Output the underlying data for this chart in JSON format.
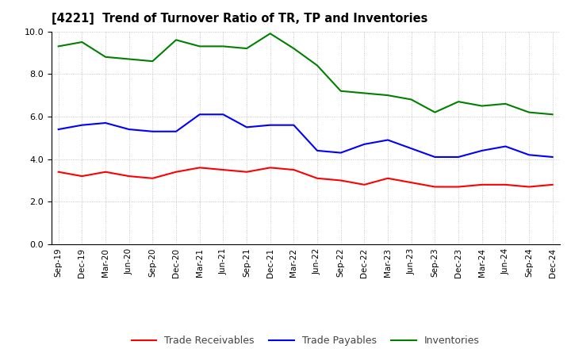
{
  "title": "[4221]  Trend of Turnover Ratio of TR, TP and Inventories",
  "x_labels": [
    "Sep-19",
    "Dec-19",
    "Mar-20",
    "Jun-20",
    "Sep-20",
    "Dec-20",
    "Mar-21",
    "Jun-21",
    "Sep-21",
    "Dec-21",
    "Mar-22",
    "Jun-22",
    "Sep-22",
    "Dec-22",
    "Mar-23",
    "Jun-23",
    "Sep-23",
    "Dec-23",
    "Mar-24",
    "Jun-24",
    "Sep-24",
    "Dec-24"
  ],
  "trade_receivables": [
    3.4,
    3.2,
    3.4,
    3.2,
    3.1,
    3.4,
    3.6,
    3.5,
    3.4,
    3.6,
    3.5,
    3.1,
    3.0,
    2.8,
    3.1,
    2.9,
    2.7,
    2.7,
    2.8,
    2.8,
    2.7,
    2.8
  ],
  "trade_payables": [
    5.4,
    5.6,
    5.7,
    5.4,
    5.3,
    5.3,
    6.1,
    6.1,
    5.5,
    5.6,
    5.6,
    4.4,
    4.3,
    4.7,
    4.9,
    4.5,
    4.1,
    4.1,
    4.4,
    4.6,
    4.2,
    4.1
  ],
  "inventories": [
    9.3,
    9.5,
    8.8,
    8.7,
    8.6,
    9.6,
    9.3,
    9.3,
    9.2,
    9.9,
    9.2,
    8.4,
    7.2,
    7.1,
    7.0,
    6.8,
    6.2,
    6.7,
    6.5,
    6.6,
    6.2,
    6.1
  ],
  "color_tr": "#ff0000",
  "color_tp": "#0000ff",
  "color_inv": "#008000",
  "ylim": [
    0.0,
    10.0
  ],
  "yticks": [
    0.0,
    2.0,
    4.0,
    6.0,
    8.0,
    10.0
  ],
  "legend_labels": [
    "Trade Receivables",
    "Trade Payables",
    "Inventories"
  ],
  "background_color": "#ffffff",
  "grid_color": "#999999"
}
